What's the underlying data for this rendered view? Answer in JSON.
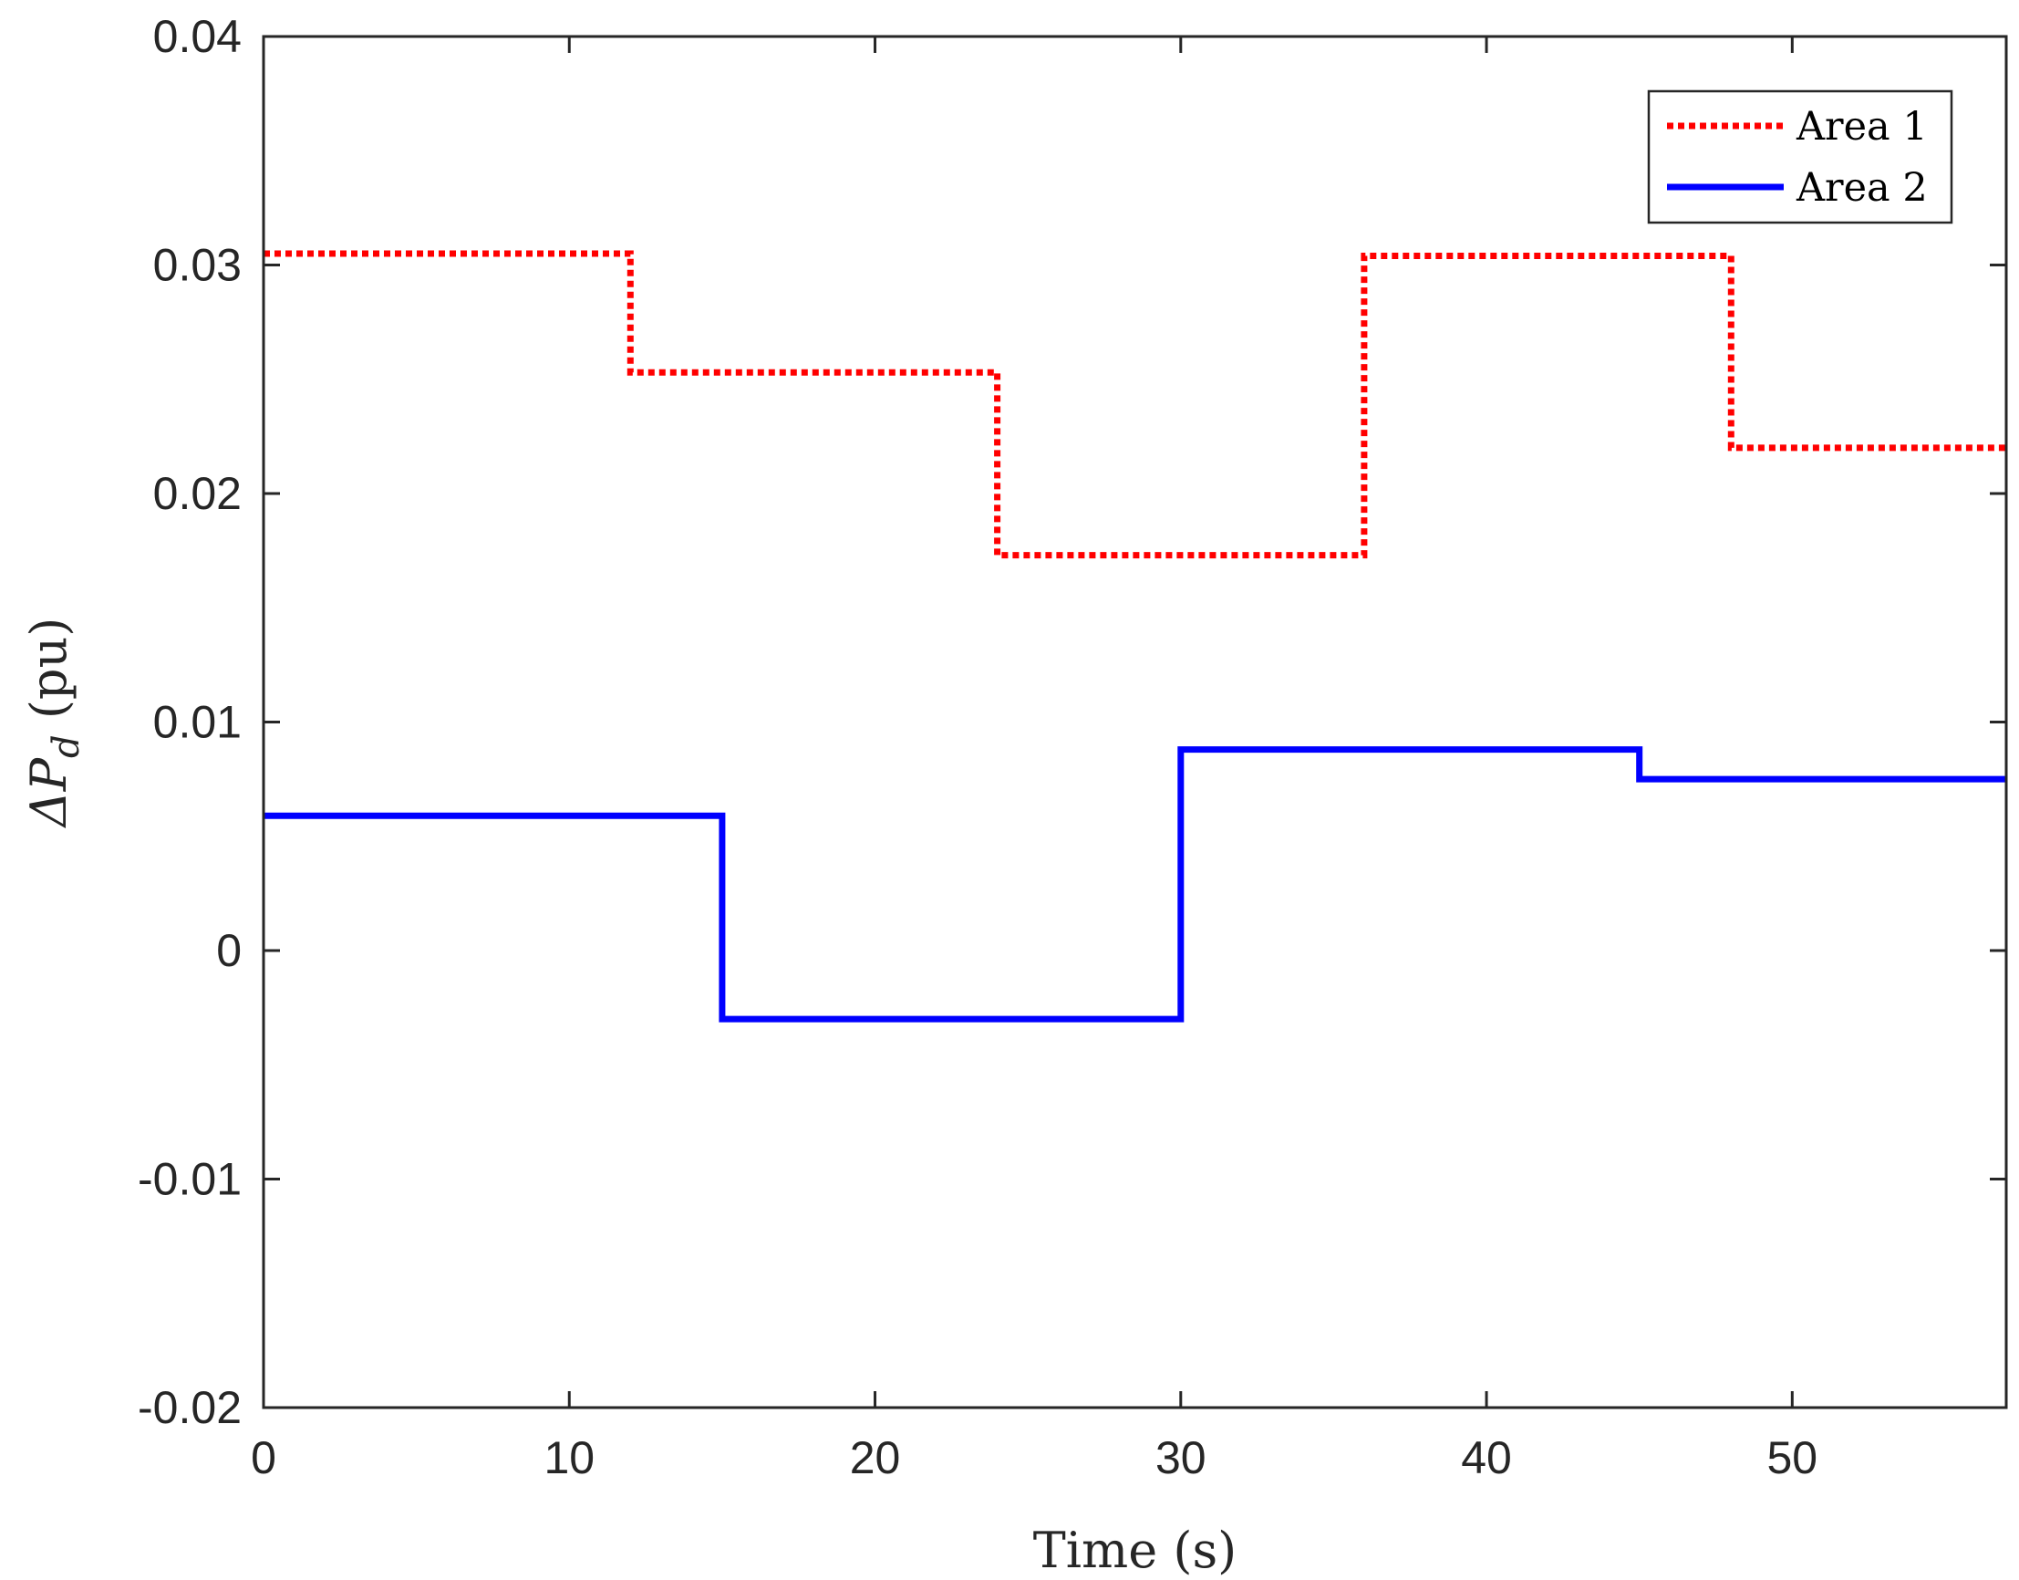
{
  "chart_data": {
    "type": "line",
    "step": true,
    "x": {
      "label": "Time (s)",
      "lim": [
        0,
        57
      ],
      "ticks": [
        0,
        10,
        20,
        30,
        40,
        50
      ],
      "tick_labels": [
        "0",
        "10",
        "20",
        "30",
        "40",
        "50"
      ]
    },
    "y": {
      "label_symbol": "ΔP",
      "label_subscript": "d",
      "label_unit": " (pu)",
      "lim": [
        -0.02,
        0.04
      ],
      "ticks": [
        -0.02,
        -0.01,
        0,
        0.01,
        0.02,
        0.03,
        0.04
      ],
      "tick_labels": [
        "-0.02",
        "-0.01",
        "0",
        "0.01",
        "0.02",
        "0.03",
        "0.04"
      ]
    },
    "grid": false,
    "legend_position": "top-right",
    "series": [
      {
        "name": "Area 1",
        "color": "#ff0000",
        "style": "dotted",
        "points": [
          [
            0,
            0.0305
          ],
          [
            12,
            0.0305
          ],
          [
            12,
            0.0253
          ],
          [
            24,
            0.0253
          ],
          [
            24,
            0.0173
          ],
          [
            36,
            0.0173
          ],
          [
            36,
            0.0304
          ],
          [
            48,
            0.0304
          ],
          [
            48,
            0.022
          ],
          [
            57,
            0.022
          ]
        ]
      },
      {
        "name": "Area 2",
        "color": "#0000ff",
        "style": "solid",
        "points": [
          [
            0,
            0.0059
          ],
          [
            15,
            0.0059
          ],
          [
            15,
            -0.003
          ],
          [
            30,
            -0.003
          ],
          [
            30,
            0.0088
          ],
          [
            45,
            0.0088
          ],
          [
            45,
            0.0075
          ],
          [
            57,
            0.0075
          ]
        ]
      }
    ]
  }
}
